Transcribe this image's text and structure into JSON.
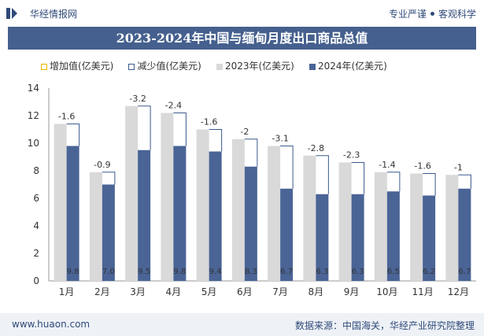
{
  "header": {
    "site_name": "华经情报网",
    "tagline_left": "专业严谨",
    "tagline_right": "客观科学"
  },
  "chart_data": {
    "type": "bar",
    "title": "2023-2024年中国与缅甸月度出口商品总值",
    "categories": [
      "1月",
      "2月",
      "3月",
      "4月",
      "5月",
      "6月",
      "7月",
      "8月",
      "9月",
      "10月",
      "11月",
      "12月"
    ],
    "series": [
      {
        "name": "2023年(亿美元)",
        "values": [
          11.4,
          7.9,
          12.7,
          12.2,
          11.0,
          10.3,
          9.8,
          9.1,
          8.6,
          7.9,
          7.8,
          7.7
        ],
        "color": "#d9d9d9"
      },
      {
        "name": "2024年(亿美元)",
        "values": [
          9.8,
          7.0,
          9.5,
          9.8,
          9.4,
          8.3,
          6.7,
          6.3,
          6.3,
          6.5,
          6.2,
          6.7
        ],
        "color": "#4a6496"
      }
    ],
    "change": {
      "increase_name": "增加值(亿美元)",
      "decrease_name": "减少值(亿美元)",
      "labels": [
        "-1.6",
        "-0.9",
        "-3.2",
        "-2.4",
        "-1.6",
        "-2",
        "-3.1",
        "-2.8",
        "-2.3",
        "-1.4",
        "-1.6",
        "-1"
      ],
      "increase_color": "#e8b400",
      "decrease_color": "#3a5a8e"
    },
    "ylim": [
      0,
      14
    ],
    "yticks": [
      0,
      2,
      4,
      6,
      8,
      10,
      12,
      14
    ],
    "xlabel": "",
    "ylabel": "",
    "legend_position": "top",
    "grid": false
  },
  "footer": {
    "url": "www.huaon.com",
    "source": "数据来源：中国海关，华经产业研究院整理"
  },
  "colors": {
    "brand": "#2f4a7a",
    "title_bar": "#45608e"
  }
}
